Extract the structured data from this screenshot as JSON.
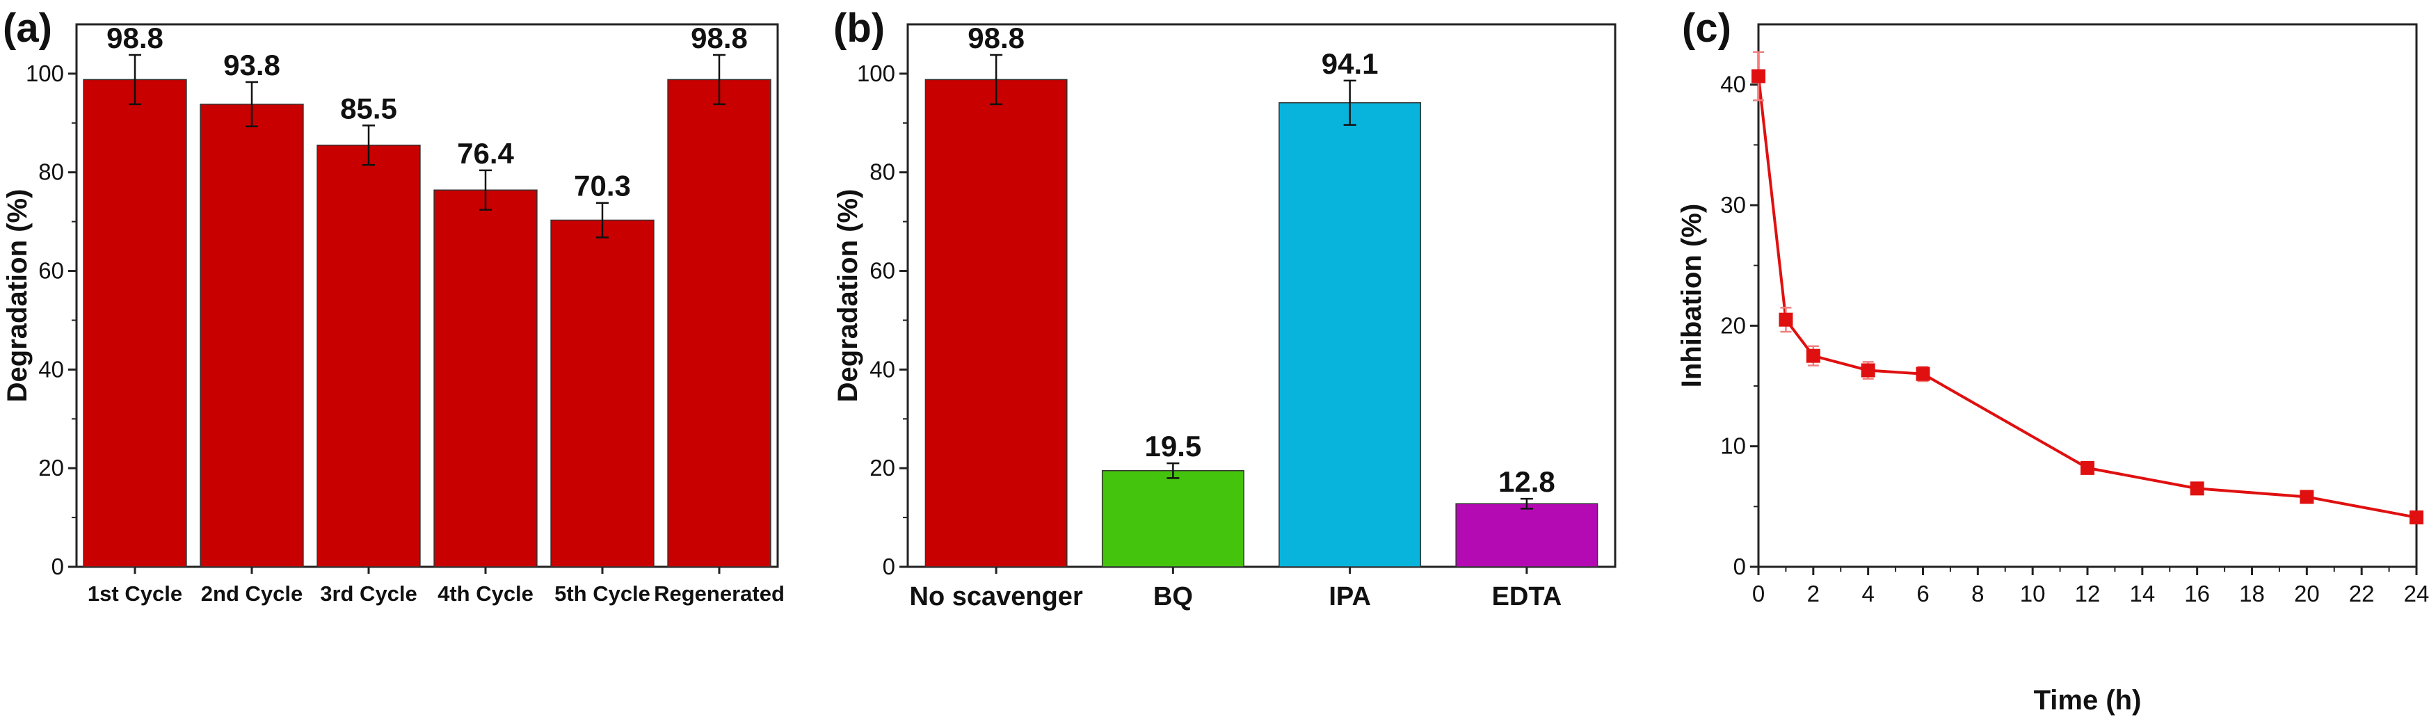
{
  "panels": [
    {
      "label": "(a)"
    },
    {
      "label": "(b)"
    },
    {
      "label": "(c)"
    }
  ],
  "colors": {
    "red": "#c80000",
    "green": "#44c40c",
    "cyan": "#08b4dc",
    "magenta": "#b40ab4",
    "line_red": "#e01010"
  },
  "chart_data": [
    {
      "type": "bar",
      "panel": "(a)",
      "title": "",
      "xlabel": "",
      "ylabel": "Degradation (%)",
      "ylim": [
        0,
        110
      ],
      "yticks": [
        0,
        20,
        40,
        60,
        80,
        100
      ],
      "categories": [
        "1st Cycle",
        "2nd Cycle",
        "3rd Cycle",
        "4th Cycle",
        "5th Cycle",
        "Regenerated"
      ],
      "values": [
        98.8,
        93.8,
        85.5,
        76.4,
        70.3,
        98.8
      ],
      "errors": [
        5,
        4.5,
        4,
        4,
        3.5,
        5
      ],
      "data_labels": [
        "98.8",
        "93.8",
        "85.5",
        "76.4",
        "70.3",
        "98.8"
      ],
      "bar_colors": [
        "#c80000",
        "#c80000",
        "#c80000",
        "#c80000",
        "#c80000",
        "#c80000"
      ],
      "grid": false
    },
    {
      "type": "bar",
      "panel": "(b)",
      "title": "",
      "xlabel": "",
      "ylabel": "Degradation (%)",
      "ylim": [
        0,
        110
      ],
      "yticks": [
        0,
        20,
        40,
        60,
        80,
        100
      ],
      "categories": [
        "No scavenger",
        "BQ",
        "IPA",
        "EDTA"
      ],
      "values": [
        98.8,
        19.5,
        94.1,
        12.8
      ],
      "errors": [
        5,
        1.5,
        4.5,
        1
      ],
      "data_labels": [
        "98.8",
        "19.5",
        "94.1",
        "12.8"
      ],
      "bar_colors": [
        "#c80000",
        "#44c40c",
        "#08b4dc",
        "#b40ab4"
      ],
      "grid": false
    },
    {
      "type": "line",
      "panel": "(c)",
      "title": "",
      "xlabel": "Time (h)",
      "ylabel": "Inhibation (%)",
      "xlim": [
        0,
        24
      ],
      "ylim": [
        0,
        45
      ],
      "xticks": [
        0,
        2,
        4,
        6,
        8,
        10,
        12,
        14,
        16,
        18,
        20,
        22,
        24
      ],
      "yticks": [
        0,
        10,
        20,
        30,
        40
      ],
      "x": [
        0,
        1,
        2,
        4,
        6,
        12,
        16,
        20,
        24
      ],
      "y": [
        40.7,
        20.5,
        17.5,
        16.3,
        16.0,
        8.2,
        6.5,
        5.8,
        4.1
      ],
      "errors": [
        2.0,
        1.0,
        0.8,
        0.7,
        0.6,
        0.4,
        0.3,
        0.3,
        0.3
      ],
      "grid": false
    }
  ]
}
